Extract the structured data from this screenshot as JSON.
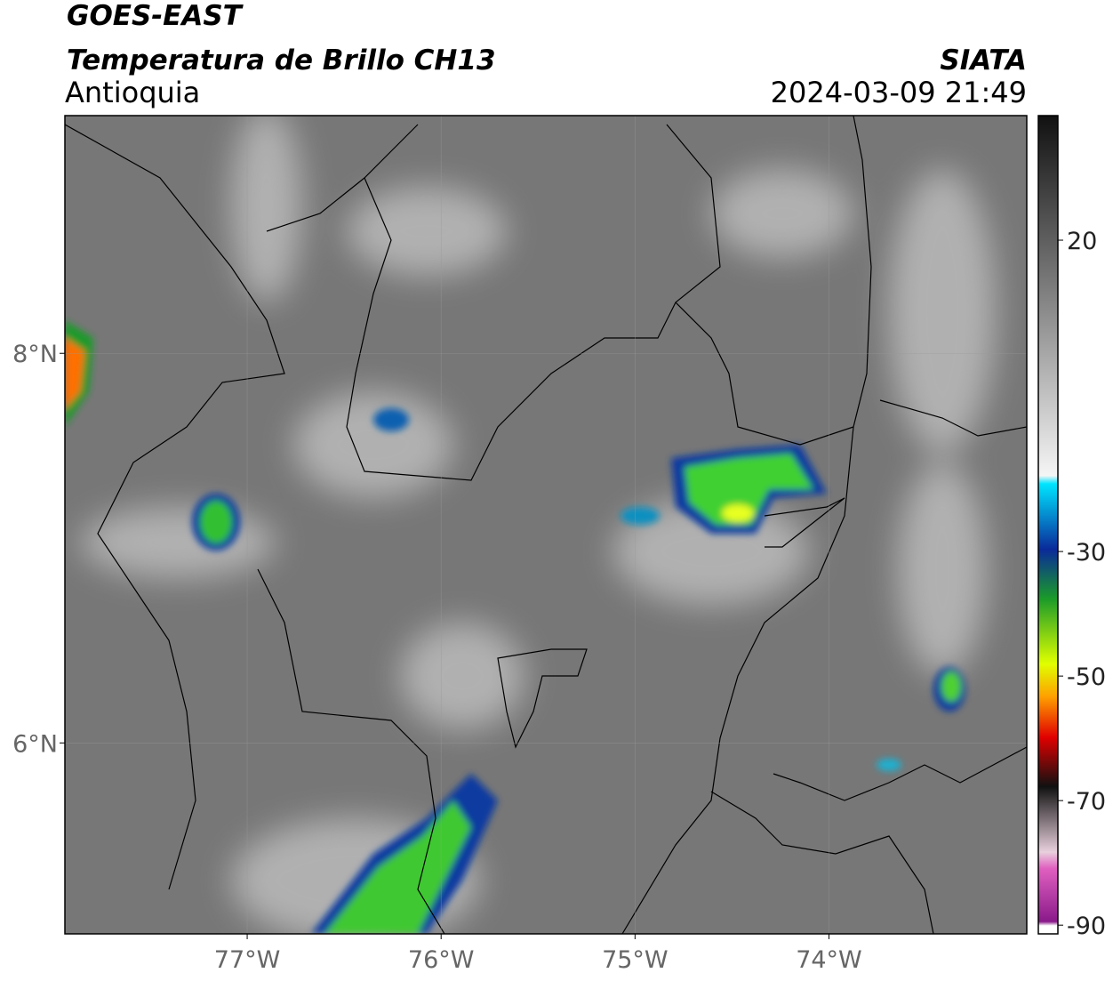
{
  "header": {
    "satellite": "GOES-EAST",
    "product": "Temperatura de Brillo CH13",
    "region": "Antioquia",
    "source": "SIATA",
    "datetime": "2024-03-09 21:49"
  },
  "map": {
    "xlim": [
      -77.94,
      -72.98
    ],
    "ylim": [
      5.02,
      9.22
    ],
    "xticks": [
      {
        "value": -77,
        "label": "77°W"
      },
      {
        "value": -76,
        "label": "76°W"
      },
      {
        "value": -75,
        "label": "75°W"
      },
      {
        "value": -74,
        "label": "74°W"
      }
    ],
    "yticks": [
      {
        "value": 8,
        "label": "8°N"
      },
      {
        "value": 6,
        "label": "6°N"
      }
    ],
    "grid": true
  },
  "colorbar": {
    "lim": [
      -91.4,
      40
    ],
    "ticks": [
      20,
      -30,
      -50,
      -70,
      -90
    ]
  }
}
